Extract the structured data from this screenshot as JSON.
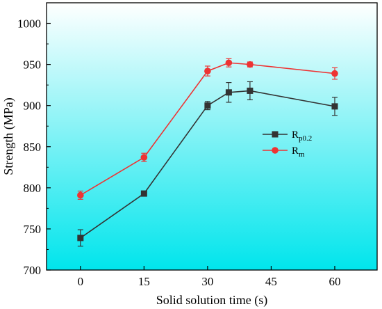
{
  "chart_data": {
    "type": "line",
    "xlabel": "Solid solution time (s)",
    "ylabel": "Strength (MPa)",
    "xlim": [
      -8,
      70
    ],
    "ylim": [
      700,
      1025
    ],
    "x_ticks": [
      0,
      15,
      30,
      45,
      60
    ],
    "y_ticks": [
      700,
      750,
      800,
      850,
      900,
      950,
      1000
    ],
    "x_tick_labels": [
      "0",
      "15",
      "30",
      "45",
      "60"
    ],
    "y_tick_labels": [
      "700",
      "750",
      "800",
      "850",
      "900",
      "950",
      "1000"
    ],
    "x": [
      0,
      15,
      30,
      35,
      40,
      60
    ],
    "series": [
      {
        "name": "Rp0.2",
        "name_main": "R",
        "name_sub": "p0.2",
        "color": "#333333",
        "marker": "square",
        "values": [
          739,
          793,
          900,
          916,
          918,
          899
        ],
        "errors": [
          10,
          2,
          5,
          12,
          11,
          11
        ]
      },
      {
        "name": "Rm",
        "name_main": "R",
        "name_sub": "m",
        "color": "#ee3333",
        "marker": "circle",
        "values": [
          791,
          837,
          942,
          952,
          950,
          939
        ],
        "errors": [
          5,
          5,
          6,
          5,
          3,
          7
        ]
      }
    ],
    "legend_position": "center-right",
    "grid": false,
    "background": {
      "top": "#ffffff",
      "bottom": "#00e5ec"
    }
  }
}
